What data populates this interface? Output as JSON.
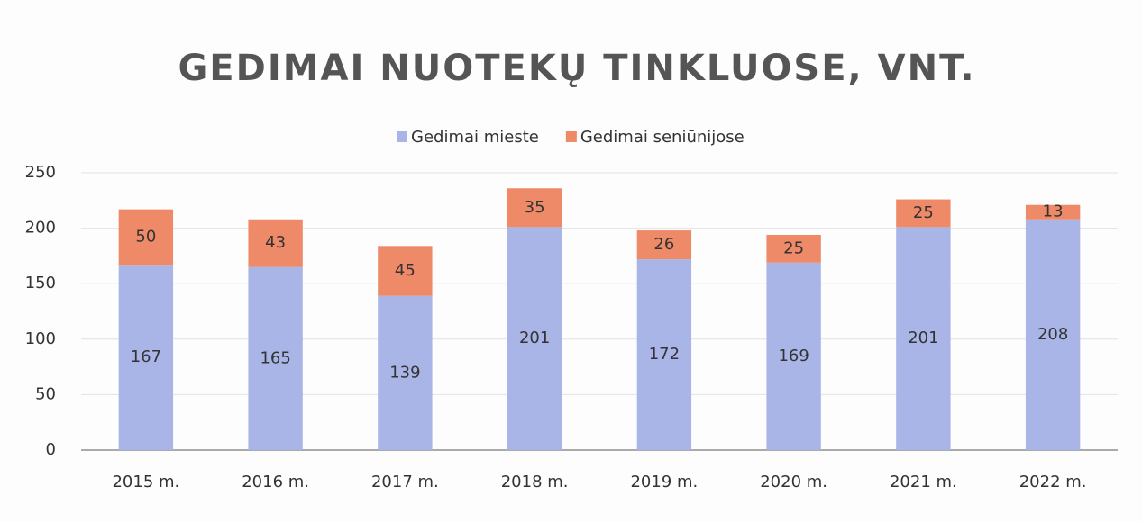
{
  "chart_data": {
    "type": "bar",
    "stacked": true,
    "title": "GEDIMAI NUOTEKŲ TINKLUOSE, VNT.",
    "categories": [
      "2015 m.",
      "2016 m.",
      "2017 m.",
      "2018 m.",
      "2019 m.",
      "2020 m.",
      "2021 m.",
      "2022 m."
    ],
    "series": [
      {
        "name": "Gedimai mieste",
        "color": "#a9b5e6",
        "values": [
          167,
          165,
          139,
          201,
          172,
          169,
          201,
          208
        ]
      },
      {
        "name": "Gedimai seniūnijose",
        "color": "#ee8a68",
        "values": [
          50,
          43,
          45,
          35,
          26,
          25,
          25,
          13
        ]
      }
    ],
    "ylim": [
      0,
      250
    ],
    "yticks": [
      0,
      50,
      100,
      150,
      200,
      250
    ],
    "grid": true,
    "legend": "top"
  }
}
